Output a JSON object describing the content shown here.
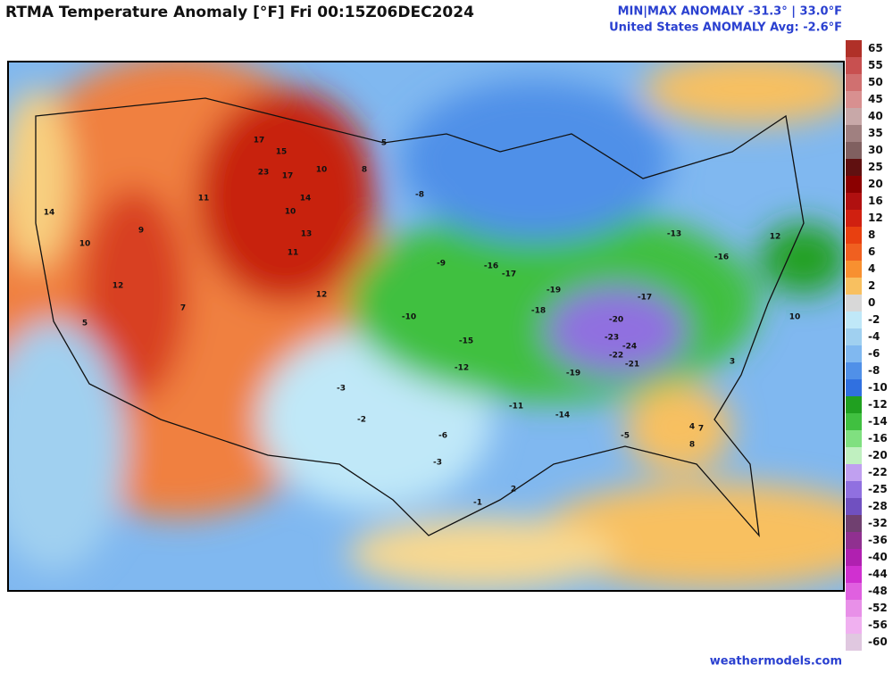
{
  "header": {
    "title": "RTMA Temperature Anomaly [°F]  Fri 00:15Z06DEC2024",
    "stats_line1": "MIN|MAX ANOMALY -31.3° | 33.0°F",
    "stats_line2": "United States ANOMALY Avg: -2.6°F"
  },
  "colorbar": {
    "ticks": [
      65,
      55,
      50,
      45,
      40,
      35,
      30,
      25,
      20,
      16,
      12,
      8,
      6,
      4,
      2,
      0,
      -2,
      -4,
      -6,
      -8,
      -10,
      -12,
      -14,
      -16,
      -20,
      -22,
      -25,
      -28,
      -32,
      -36,
      -40,
      -44,
      -48,
      -52,
      -56,
      -60
    ],
    "colors": [
      "#b03028",
      "#c85050",
      "#d07070",
      "#d89090",
      "#c8a8a8",
      "#a08080",
      "#806060",
      "#601010",
      "#8b0000",
      "#b01010",
      "#d02010",
      "#e84010",
      "#f06020",
      "#f89030",
      "#f8c060",
      "#d8d8d8",
      "#c0e8f8",
      "#a0d0f0",
      "#80b8f0",
      "#5090e8",
      "#3070e0",
      "#20a020",
      "#40c040",
      "#80e080",
      "#c0f0c0",
      "#c0a0f0",
      "#9070e0",
      "#7050c0",
      "#704070",
      "#903090",
      "#b020b0",
      "#d030d0",
      "#e060e0",
      "#e890e8",
      "#f0b0f0",
      "#e0c8e0"
    ]
  },
  "map_labels": [
    17,
    15,
    23,
    17,
    14,
    10,
    13,
    11,
    12,
    8,
    10,
    5,
    11,
    9,
    14,
    10,
    5,
    12,
    7,
    -3,
    -2,
    -8,
    -10,
    -15,
    -16,
    -17,
    -19,
    -20,
    -23,
    -24,
    -22,
    -21,
    -19,
    -17,
    -14,
    -11,
    -12,
    -9,
    -6,
    -3,
    -1,
    3,
    7,
    8,
    10,
    12,
    4,
    2,
    -5,
    -13,
    -16,
    -18
  ],
  "footer": "weathermodels.com"
}
